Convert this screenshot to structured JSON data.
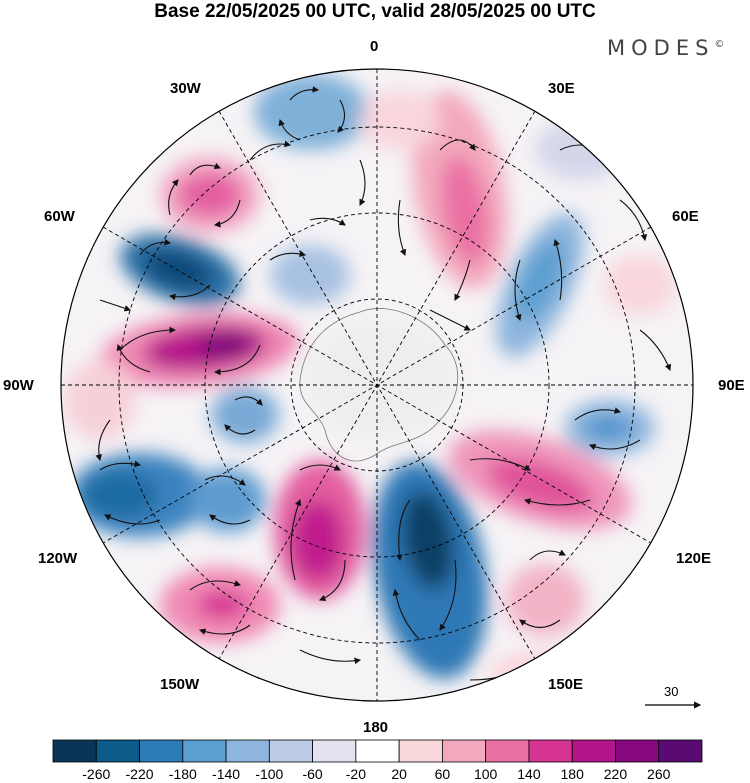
{
  "title": "Base 22/05/2025 00 UTC, valid 28/05/2025 00 UTC",
  "brand": "MODES",
  "brand_mark": "©",
  "longitude_labels": {
    "top": "0",
    "bottom": "180",
    "left": "90W",
    "right": "90E",
    "nw1": "30W",
    "nw2": "60W",
    "sw1": "120W",
    "sw2": "150W",
    "ne1": "30E",
    "ne2": "60E",
    "se1": "120E",
    "se2": "150E"
  },
  "vector_reference": {
    "value": "30"
  },
  "colorbar": {
    "labels": [
      "-260",
      "-220",
      "-180",
      "-140",
      "-100",
      "-60",
      "-20",
      "20",
      "60",
      "100",
      "140",
      "180",
      "220",
      "260"
    ],
    "colors": [
      "#0b3557",
      "#0b5a8a",
      "#2c7bb6",
      "#5b9fd0",
      "#8db5dd",
      "#bccbe6",
      "#e3e3f0",
      "#ffffff",
      "#f9d8dc",
      "#f3a9bd",
      "#ea6fa3",
      "#d73594",
      "#b5158a",
      "#86087e",
      "#5a0a73"
    ]
  }
}
